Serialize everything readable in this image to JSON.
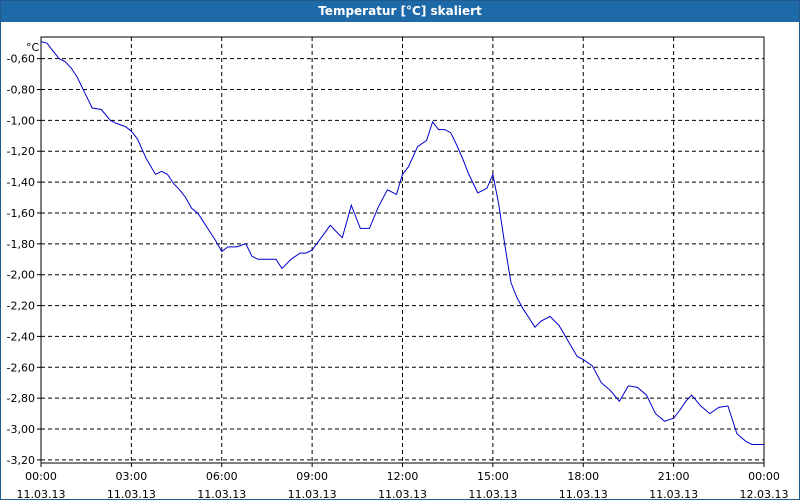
{
  "window": {
    "title": "Temperatur [°C] skaliert"
  },
  "chart_data": {
    "type": "line",
    "title": "Temperatur [°C] skaliert",
    "ylabel": "°C",
    "ylim": [
      -3.22,
      -0.46
    ],
    "y_ticks": [
      -0.6,
      -0.8,
      -1.0,
      -1.2,
      -1.4,
      -1.6,
      -1.8,
      -2.0,
      -2.2,
      -2.4,
      -2.6,
      -2.8,
      -3.0,
      -3.2
    ],
    "y_tick_labels": [
      "-0,60",
      "-0,80",
      "-1,00",
      "-1,20",
      "-1,40",
      "-1,60",
      "-1,80",
      "-2,00",
      "-2,20",
      "-2,40",
      "-2,60",
      "-2,80",
      "-3,00",
      "-3,20"
    ],
    "x_ticks": [
      {
        "time": "00:00",
        "date": "11.03.13"
      },
      {
        "time": "03:00",
        "date": "11.03.13"
      },
      {
        "time": "06:00",
        "date": "11.03.13"
      },
      {
        "time": "09:00",
        "date": "11.03.13"
      },
      {
        "time": "12:00",
        "date": "11.03.13"
      },
      {
        "time": "15:00",
        "date": "11.03.13"
      },
      {
        "time": "18:00",
        "date": "11.03.13"
      },
      {
        "time": "21:00",
        "date": "11.03.13"
      },
      {
        "time": "00:00",
        "date": "12.03.13"
      }
    ],
    "grid": true,
    "series_color": "#0000cc",
    "series": [
      {
        "x_hours": [
          0,
          0.2,
          0.4,
          0.6,
          0.8,
          1.0,
          1.2,
          1.5,
          1.7,
          2.0,
          2.3,
          2.5,
          2.8,
          3.0,
          3.2,
          3.5,
          3.8,
          4.0,
          4.2,
          4.4,
          4.6,
          4.8,
          5.0,
          5.2,
          5.4,
          5.6,
          5.8,
          6.0,
          6.2,
          6.5,
          6.8,
          7.0,
          7.2,
          7.5,
          7.8,
          8.0,
          8.3,
          8.6,
          8.8,
          9.0,
          9.3,
          9.6,
          9.8,
          10.0,
          10.3,
          10.6,
          10.9,
          11.2,
          11.5,
          11.8,
          12.0,
          12.2,
          12.5,
          12.8,
          13.0,
          13.2,
          13.4,
          13.6,
          13.8,
          14.0,
          14.2,
          14.5,
          14.8,
          15.0,
          15.2,
          15.4,
          15.6,
          15.8,
          16.0,
          16.2,
          16.4,
          16.6,
          16.9,
          17.2,
          17.5,
          17.8,
          18.0,
          18.3,
          18.6,
          18.9,
          19.2,
          19.5,
          19.8,
          20.1,
          20.4,
          20.7,
          21.0,
          21.2,
          21.4,
          21.6,
          21.9,
          22.2,
          22.5,
          22.8,
          23.1,
          23.4,
          23.6,
          23.8,
          24.0
        ],
        "values": [
          -0.49,
          -0.5,
          -0.55,
          -0.6,
          -0.62,
          -0.66,
          -0.72,
          -0.84,
          -0.92,
          -0.93,
          -1.0,
          -1.02,
          -1.04,
          -1.07,
          -1.12,
          -1.25,
          -1.35,
          -1.33,
          -1.35,
          -1.41,
          -1.45,
          -1.5,
          -1.57,
          -1.6,
          -1.66,
          -1.72,
          -1.78,
          -1.85,
          -1.82,
          -1.82,
          -1.8,
          -1.88,
          -1.9,
          -1.9,
          -1.9,
          -1.96,
          -1.9,
          -1.86,
          -1.86,
          -1.84,
          -1.76,
          -1.68,
          -1.72,
          -1.76,
          -1.55,
          -1.7,
          -1.7,
          -1.56,
          -1.45,
          -1.48,
          -1.35,
          -1.3,
          -1.17,
          -1.13,
          -1.01,
          -1.06,
          -1.06,
          -1.08,
          -1.16,
          -1.25,
          -1.35,
          -1.47,
          -1.44,
          -1.35,
          -1.55,
          -1.81,
          -2.05,
          -2.15,
          -2.22,
          -2.28,
          -2.34,
          -2.3,
          -2.27,
          -2.33,
          -2.43,
          -2.53,
          -2.55,
          -2.59,
          -2.7,
          -2.75,
          -2.82,
          -2.72,
          -2.73,
          -2.78,
          -2.9,
          -2.95,
          -2.93,
          -2.88,
          -2.82,
          -2.78,
          -2.85,
          -2.9,
          -2.86,
          -2.85,
          -3.03,
          -3.08,
          -3.1,
          -3.1,
          -3.1
        ]
      }
    ]
  }
}
